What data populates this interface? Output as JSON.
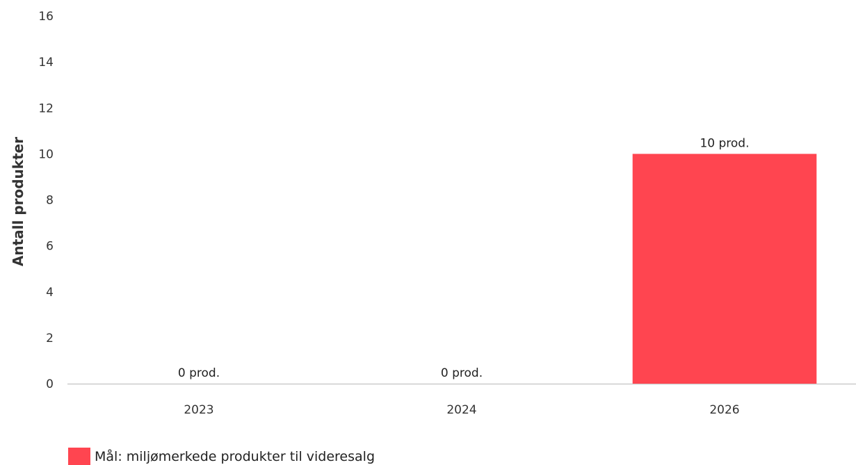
{
  "chart_data": {
    "type": "bar",
    "categories": [
      "2023",
      "2024",
      "2026"
    ],
    "series": [
      {
        "name": "Mål: miljømerkede produkter til videresalg",
        "values": [
          0,
          0,
          10
        ],
        "color": "#ff4550"
      }
    ],
    "data_labels": [
      "0 prod.",
      "0 prod.",
      "10 prod."
    ],
    "ylabel": "Antall produkter",
    "xlabel": "",
    "ylim": [
      0,
      16
    ],
    "yticks": [
      "0",
      "2",
      "4",
      "6",
      "8",
      "10",
      "12",
      "14",
      "16"
    ],
    "grid": false,
    "legend_position": "bottom-left"
  }
}
